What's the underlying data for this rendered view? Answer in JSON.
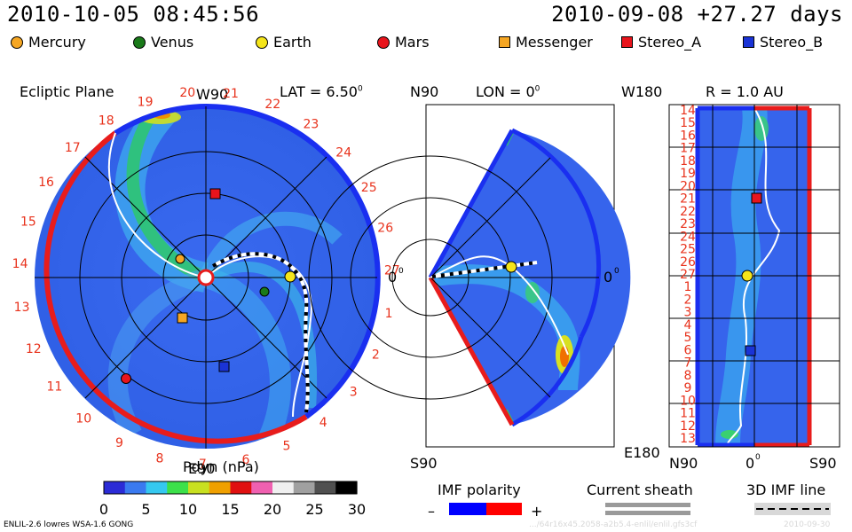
{
  "header": {
    "timestamp": "2010-10-05 08:45:56",
    "reference": "2010-09-08 +27.27 days"
  },
  "legend": [
    {
      "label": "Mercury",
      "shape": "circle",
      "color": "#f5a623"
    },
    {
      "label": "Venus",
      "shape": "circle",
      "color": "#1a7a1a"
    },
    {
      "label": "Earth",
      "shape": "circle",
      "color": "#f5e51a"
    },
    {
      "label": "Mars",
      "shape": "circle",
      "color": "#e8141c"
    },
    {
      "label": "Messenger",
      "shape": "square",
      "color": "#f5a623"
    },
    {
      "label": "Stereo_A",
      "shape": "square",
      "color": "#e8141c"
    },
    {
      "label": "Stereo_B",
      "shape": "square",
      "color": "#1a33d6"
    }
  ],
  "panels": {
    "ecliptic": {
      "title": "Ecliptic Plane",
      "top_label": "W90",
      "bottom_label": "E90",
      "lat_label": "LAT = 6.50",
      "deg": "0",
      "right_label": "0",
      "day_ticks": [
        "19",
        "20",
        "21",
        "22",
        "23",
        "24",
        "25",
        "26",
        "27",
        "1",
        "2",
        "3",
        "4",
        "5",
        "6",
        "7",
        "8",
        "9",
        "10",
        "11",
        "12",
        "13",
        "14",
        "15",
        "16",
        "17",
        "18"
      ]
    },
    "meridional": {
      "top_label": "N90",
      "lon_label": "LON = 0",
      "deg": "0",
      "right_label": "0",
      "bottom_label": "S90"
    },
    "radial": {
      "title": "R = 1.0 AU",
      "top_label": "W180",
      "bottom_label": "E180",
      "x_labels": [
        "N90",
        "0",
        "S90"
      ],
      "deg": "0",
      "day_ticks": [
        "14",
        "15",
        "16",
        "17",
        "18",
        "19",
        "20",
        "21",
        "22",
        "23",
        "24",
        "25",
        "26",
        "27",
        "1",
        "2",
        "3",
        "4",
        "5",
        "6",
        "7",
        "8",
        "9",
        "10",
        "11",
        "12",
        "13"
      ]
    }
  },
  "colorbar": {
    "title": "Pdyn (nPa)",
    "ticks": [
      "0",
      "5",
      "10",
      "15",
      "20",
      "25",
      "30"
    ],
    "colors": [
      "#2b2bd6",
      "#3a7af0",
      "#35c8f0",
      "#3ce04a",
      "#c8e020",
      "#f0a000",
      "#e01010",
      "#f060b0",
      "#f0f0f0",
      "#a0a0a0",
      "#505050",
      "#000000"
    ]
  },
  "imf_polarity": {
    "title": "IMF polarity",
    "minus": "–",
    "plus": "+",
    "neg_color": "#0000ff",
    "pos_color": "#ff0000"
  },
  "current_sheath": {
    "title": "Current sheath"
  },
  "imf_line": {
    "title": "3D IMF line"
  },
  "footer": {
    "model": "ENLIL-2.6 lowres WSA-1.6 GONG",
    "watermark": ".../64r16x45.2058-a2b5.4-enlil/enlil.gfs3cf",
    "date": "2010-09-30"
  },
  "chart_data": [
    {
      "type": "heatmap",
      "title": "Ecliptic Plane",
      "quantity": "Pdyn (nPa)",
      "color_range": [
        0,
        30
      ],
      "bodies": [
        {
          "name": "Mercury",
          "x": -0.12,
          "y": 0.08
        },
        {
          "name": "Venus",
          "x": 0.35,
          "y": -0.1
        },
        {
          "name": "Earth",
          "x": 0.5,
          "y": 0.0
        },
        {
          "name": "Mars",
          "x": -0.46,
          "y": -0.6
        },
        {
          "name": "Messenger",
          "x": -0.13,
          "y": -0.24
        },
        {
          "name": "Stereo_A",
          "x": 0.06,
          "y": 0.47
        },
        {
          "name": "Stereo_B",
          "x": 0.11,
          "y": -0.51
        }
      ]
    },
    {
      "type": "heatmap",
      "title": "LON = 0",
      "quantity": "Pdyn (nPa)",
      "bodies": [
        {
          "name": "Earth",
          "x": 1.0,
          "lat": 0
        }
      ]
    },
    {
      "type": "heatmap",
      "title": "R = 1.0 AU",
      "quantity": "Pdyn (nPa)",
      "bodies": [
        {
          "name": "Stereo_A",
          "day": "21"
        },
        {
          "name": "Earth",
          "day": "27"
        },
        {
          "name": "Stereo_B",
          "day": "6"
        }
      ]
    }
  ]
}
